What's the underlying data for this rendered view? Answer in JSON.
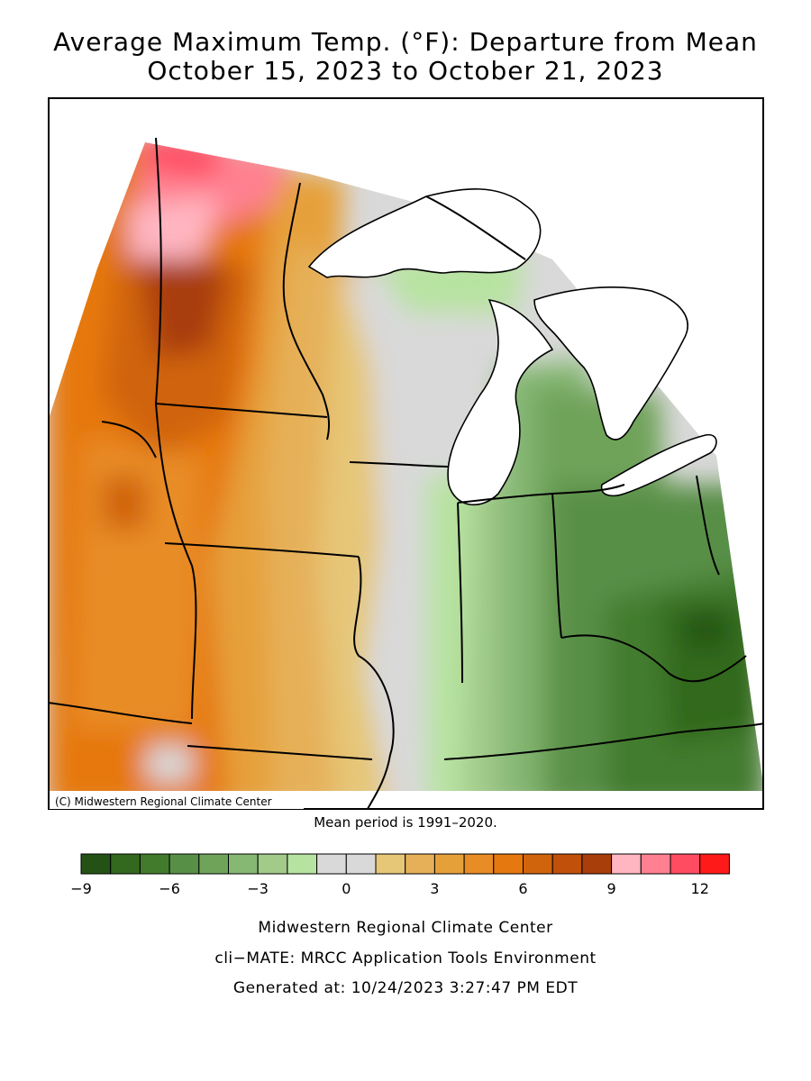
{
  "title": {
    "line1": "Average Maximum Temp. (°F): Departure from Mean",
    "line2": "October 15, 2023 to October 21, 2023"
  },
  "map": {
    "copyright": "(C) Midwestern Regional Climate Center",
    "region": "Midwest United States",
    "lakes": [
      "Lake Superior",
      "Lake Michigan",
      "Lake Huron",
      "Lake Erie"
    ]
  },
  "mean_period": "Mean period is 1991–2020.",
  "legend": {
    "colors": [
      "#245215",
      "#33691e",
      "#437b2d",
      "#588f47",
      "#6fa35a",
      "#86b874",
      "#a2cb8a",
      "#b7e3a0",
      "#d9d9d9",
      "#d9d9d9",
      "#e6c677",
      "#e6b058",
      "#e6a03a",
      "#e88d25",
      "#e67810",
      "#d0640c",
      "#c0500a",
      "#a83e0a",
      "#ffb6c1",
      "#ff8090",
      "#ff4c60",
      "#ff1a1a"
    ],
    "tick_labels": [
      "−9",
      "−6",
      "−3",
      "0",
      "3",
      "6",
      "9",
      "12"
    ]
  },
  "footer": {
    "line1": "Midwestern Regional Climate Center",
    "line2": "cli−MATE: MRCC Application Tools Environment",
    "line3": "Generated at: 10/24/2023 3:27:47 PM EDT"
  }
}
